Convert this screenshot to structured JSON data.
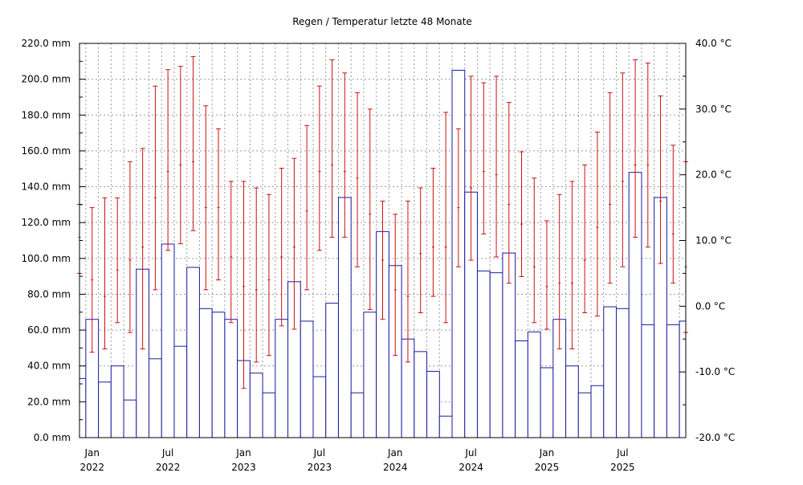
{
  "chart_data": {
    "type": "bar",
    "title": "Regen / Temperatur letzte 48 Monate",
    "y_left": {
      "unit": "mm",
      "range": [
        0,
        220
      ],
      "ticks": [
        "0.0 mm",
        "20.0 mm",
        "40.0 mm",
        "60.0 mm",
        "80.0 mm",
        "100.0 mm",
        "120.0 mm",
        "140.0 mm",
        "160.0 mm",
        "180.0 mm",
        "200.0 mm",
        "220.0 mm"
      ]
    },
    "y_right": {
      "unit": "°C",
      "range": [
        -20,
        40
      ],
      "ticks": [
        "-20.0 °C",
        "-10.0 °C",
        "0.0 °C",
        "10.0 °C",
        "20.0 °C",
        "30.0 °C",
        "40.0 °C"
      ]
    },
    "x_ticks": [
      {
        "month": "Jan",
        "year": "2022",
        "index": 1
      },
      {
        "month": "Jul",
        "year": "2022",
        "index": 7
      },
      {
        "month": "Jan",
        "year": "2023",
        "index": 13
      },
      {
        "month": "Jul",
        "year": "2023",
        "index": 19
      },
      {
        "month": "Jan",
        "year": "2024",
        "index": 25
      },
      {
        "month": "Jul",
        "year": "2024",
        "index": 31
      },
      {
        "month": "Jan",
        "year": "2025",
        "index": 37
      },
      {
        "month": "Jul",
        "year": "2025",
        "index": 43
      }
    ],
    "grid": true,
    "series": [
      {
        "type": "bar",
        "axis": "left",
        "color": "#1a1aa0",
        "values": [
          33,
          66,
          31,
          40,
          21,
          94,
          44,
          108,
          51,
          95,
          72,
          70,
          66,
          43,
          36,
          25,
          66,
          87,
          65,
          34,
          75,
          134,
          25,
          70,
          115,
          96,
          55,
          48,
          37,
          12,
          205,
          137,
          93,
          92,
          103,
          54,
          59,
          39,
          66,
          40,
          25,
          29,
          73,
          72,
          148,
          63,
          134,
          63,
          65
        ]
      },
      {
        "type": "errorbar",
        "axis": "right",
        "color": "#cc1010",
        "points": [
          {
            "min": 5.0,
            "avg": 10.5,
            "max": 15.5
          },
          {
            "min": -7.0,
            "avg": 4.0,
            "max": 15.0
          },
          {
            "min": -6.5,
            "avg": 1.5,
            "max": 16.5
          },
          {
            "min": -2.5,
            "avg": 5.5,
            "max": 16.5
          },
          {
            "min": -4.0,
            "avg": 7.0,
            "max": 22.0
          },
          {
            "min": -6.5,
            "avg": 9.0,
            "max": 24.0
          },
          {
            "min": 2.5,
            "avg": 16.5,
            "max": 33.5
          },
          {
            "min": 8.5,
            "avg": 20.5,
            "max": 36.0
          },
          {
            "min": 9.5,
            "avg": 21.5,
            "max": 36.5
          },
          {
            "min": 11.5,
            "avg": 22.0,
            "max": 38.0
          },
          {
            "min": 2.5,
            "avg": 15.0,
            "max": 30.5
          },
          {
            "min": 4.0,
            "avg": 15.0,
            "max": 27.0
          },
          {
            "min": -2.5,
            "avg": 7.5,
            "max": 19.0
          },
          {
            "min": -12.5,
            "avg": 3.0,
            "max": 19.0
          },
          {
            "min": -8.5,
            "avg": 2.5,
            "max": 18.0
          },
          {
            "min": -7.5,
            "avg": 4.0,
            "max": 17.0
          },
          {
            "min": -3.0,
            "avg": 7.5,
            "max": 21.0
          },
          {
            "min": -3.5,
            "avg": 9.0,
            "max": 22.5
          },
          {
            "min": 2.5,
            "avg": 14.5,
            "max": 27.5
          },
          {
            "min": 8.5,
            "avg": 20.5,
            "max": 33.5
          },
          {
            "min": 10.5,
            "avg": 21.5,
            "max": 37.5
          },
          {
            "min": 10.5,
            "avg": 20.5,
            "max": 35.5
          },
          {
            "min": 6.0,
            "avg": 19.5,
            "max": 32.5
          },
          {
            "min": -0.5,
            "avg": 14.0,
            "max": 30.0
          },
          {
            "min": -2.0,
            "avg": 7.0,
            "max": 16.0
          },
          {
            "min": -7.5,
            "avg": 2.5,
            "max": 14.0
          },
          {
            "min": -8.5,
            "avg": 1.5,
            "max": 16.0
          },
          {
            "min": -1.0,
            "avg": 8.0,
            "max": 18.0
          },
          {
            "min": 1.5,
            "avg": 9.0,
            "max": 21.0
          },
          {
            "min": -2.5,
            "avg": 9.0,
            "max": 29.5
          },
          {
            "min": 6.0,
            "avg": 15.0,
            "max": 27.0
          },
          {
            "min": 7.0,
            "avg": 18.0,
            "max": 35.0
          },
          {
            "min": 11.0,
            "avg": 20.5,
            "max": 34.0
          },
          {
            "min": 7.5,
            "avg": 20.0,
            "max": 35.0
          },
          {
            "min": 3.5,
            "avg": 15.5,
            "max": 31.0
          },
          {
            "min": 4.5,
            "avg": 12.5,
            "max": 23.5
          },
          {
            "min": -2.5,
            "avg": 6.0,
            "max": 19.5
          },
          {
            "min": -3.5,
            "avg": 3.0,
            "max": 13.0
          },
          {
            "min": -6.5,
            "avg": 3.5,
            "max": 17.0
          },
          {
            "min": -6.5,
            "avg": 3.5,
            "max": 19.0
          },
          {
            "min": -1.0,
            "avg": 7.0,
            "max": 21.5
          },
          {
            "min": -1.5,
            "avg": 12.0,
            "max": 26.5
          },
          {
            "min": 3.5,
            "avg": 15.5,
            "max": 32.5
          },
          {
            "min": 6.0,
            "avg": 19.0,
            "max": 35.5
          },
          {
            "min": 10.5,
            "avg": 21.5,
            "max": 37.5
          },
          {
            "min": 9.0,
            "avg": 21.5,
            "max": 37.0
          },
          {
            "min": 6.5,
            "avg": 16.0,
            "max": 32.0
          },
          {
            "min": 3.5,
            "avg": 11.0,
            "max": 24.5
          },
          {
            "min": -4.0,
            "avg": 6.0,
            "max": 22.0
          }
        ]
      }
    ]
  }
}
